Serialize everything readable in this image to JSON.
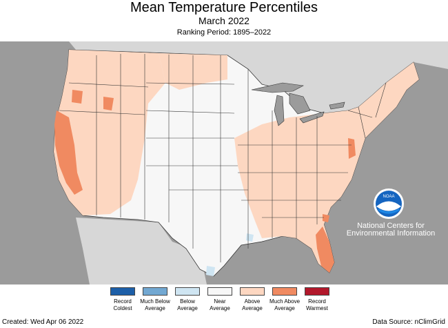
{
  "header": {
    "title": "Mean Temperature Percentiles",
    "subtitle": "March 2022",
    "ranking_period": "Ranking Period: 1895–2022"
  },
  "legend": [
    {
      "label": "Record Coldest",
      "color": "#1d5fa8"
    },
    {
      "label": "Much Below Average",
      "color": "#72a8d2"
    },
    {
      "label": "Below Average",
      "color": "#cfe5f2"
    },
    {
      "label": "Near Average",
      "color": "#f7f7f7"
    },
    {
      "label": "Above Average",
      "color": "#fdd7c1"
    },
    {
      "label": "Much Above Average",
      "color": "#f08a61"
    },
    {
      "label": "Record Warmest",
      "color": "#b2182b"
    }
  ],
  "branding": {
    "logo_text": "NOAA",
    "org_name": "National Centers for Environmental Information"
  },
  "footer": {
    "created": "Created: Wed Apr 06 2022",
    "source": "Data Source: nClimGrid"
  },
  "colors": {
    "background_land": "#d7d7d7",
    "water": "#9b9b9b",
    "near_average": "#f7f7f7",
    "above_average": "#fdd7c1",
    "much_above_average": "#f08a61",
    "below_average": "#cfe5f2",
    "state_borders": "#333333"
  }
}
